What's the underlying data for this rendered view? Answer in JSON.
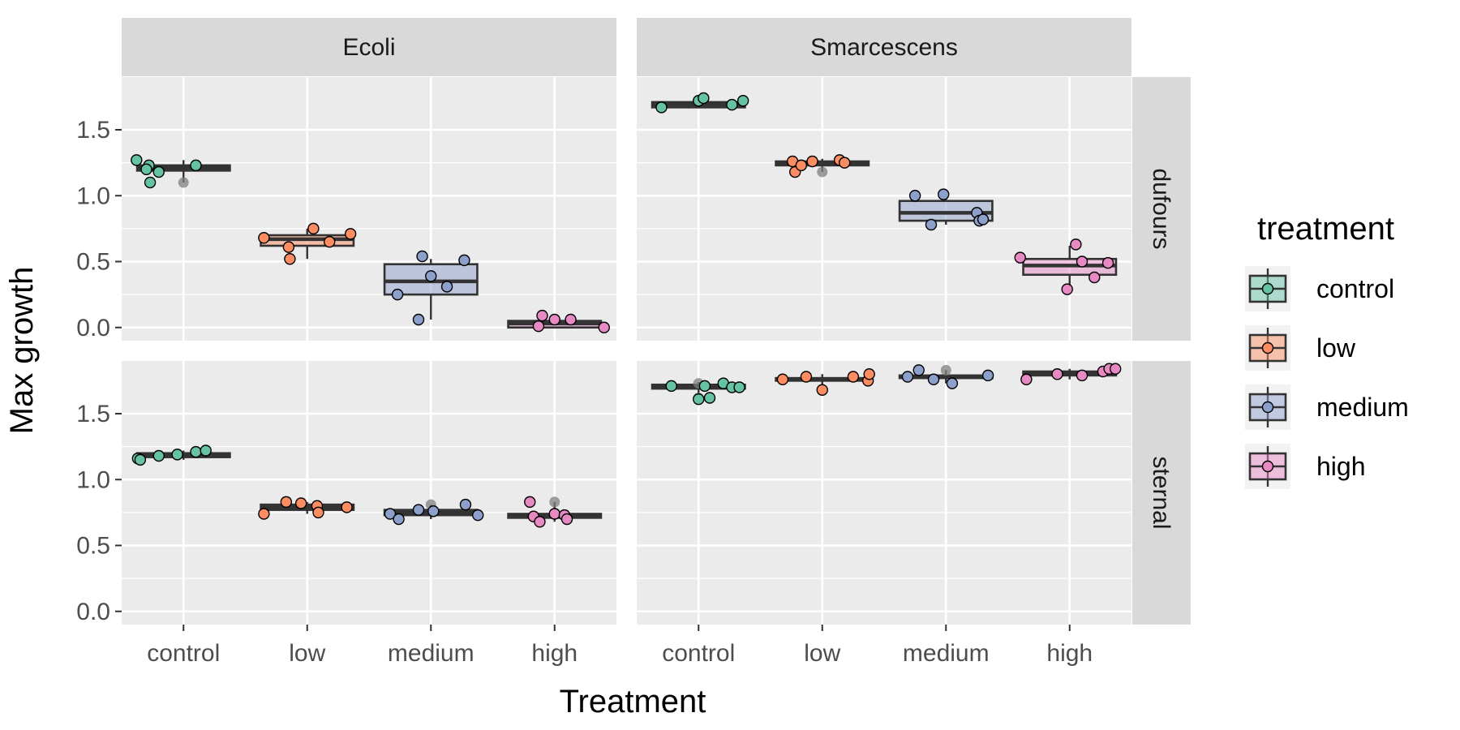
{
  "chart_data": {
    "type": "boxplot",
    "xlabel": "Treatment",
    "ylabel": "Max growth",
    "categories": [
      "control",
      "low",
      "medium",
      "high"
    ],
    "facet_cols": [
      "Ecoli",
      "Smarcescens"
    ],
    "facet_rows": [
      "dufours",
      "sternal"
    ],
    "ylim": [
      -0.1,
      1.9
    ],
    "yticks": [
      "0.0",
      "0.5",
      "1.0",
      "1.5"
    ],
    "grid": true,
    "legend": {
      "title": "treatment",
      "placement": "right",
      "entries": [
        "control",
        "low",
        "medium",
        "high"
      ]
    },
    "colors": {
      "control": "#66c2a5",
      "low": "#fc8d62",
      "medium": "#8da0cb",
      "high": "#e78ac3",
      "panel": "#ebebeb",
      "strip": "#d9d9d9",
      "outlier": "#7f7f7f"
    },
    "panels": [
      {
        "col": "Ecoli",
        "row": "dufours",
        "boxes": [
          {
            "treatment": "control",
            "ymin": 1.1,
            "q1": 1.19,
            "median": 1.21,
            "q3": 1.23,
            "ymax": 1.27,
            "outliers": [
              1.1
            ],
            "points": [
              [
                -0.38,
                1.27
              ],
              [
                -0.28,
                1.23
              ],
              [
                -0.3,
                1.2
              ],
              [
                -0.2,
                1.18
              ],
              [
                -0.27,
                1.1
              ],
              [
                0.1,
                1.23
              ]
            ]
          },
          {
            "treatment": "low",
            "ymin": 0.52,
            "q1": 0.62,
            "median": 0.67,
            "q3": 0.7,
            "ymax": 0.75,
            "outliers": [],
            "points": [
              [
                -0.35,
                0.68
              ],
              [
                -0.15,
                0.61
              ],
              [
                -0.14,
                0.52
              ],
              [
                0.05,
                0.75
              ],
              [
                0.18,
                0.65
              ],
              [
                0.35,
                0.71
              ]
            ]
          },
          {
            "treatment": "medium",
            "ymin": 0.06,
            "q1": 0.25,
            "median": 0.35,
            "q3": 0.48,
            "ymax": 0.52,
            "outliers": [],
            "points": [
              [
                -0.27,
                0.25
              ],
              [
                -0.1,
                0.06
              ],
              [
                -0.07,
                0.54
              ],
              [
                0.0,
                0.39
              ],
              [
                0.13,
                0.31
              ],
              [
                0.27,
                0.51
              ]
            ]
          },
          {
            "treatment": "high",
            "ymin": 0.0,
            "q1": 0.0,
            "median": 0.03,
            "q3": 0.05,
            "ymax": 0.09,
            "outliers": [],
            "points": [
              [
                -0.13,
                0.01
              ],
              [
                -0.1,
                0.09
              ],
              [
                0.0,
                0.06
              ],
              [
                0.13,
                0.06
              ],
              [
                0.4,
                0.0
              ]
            ]
          }
        ]
      },
      {
        "col": "Smarcescens",
        "row": "dufours",
        "boxes": [
          {
            "treatment": "control",
            "ymin": 1.67,
            "q1": 1.67,
            "median": 1.69,
            "q3": 1.71,
            "ymax": 1.74,
            "outliers": [],
            "points": [
              [
                -0.3,
                1.67
              ],
              [
                0.0,
                1.72
              ],
              [
                0.04,
                1.74
              ],
              [
                0.27,
                1.69
              ],
              [
                0.36,
                1.72
              ]
            ]
          },
          {
            "treatment": "low",
            "ymin": 1.18,
            "q1": 1.23,
            "median": 1.24,
            "q3": 1.26,
            "ymax": 1.28,
            "outliers": [
              1.18
            ],
            "points": [
              [
                -0.24,
                1.26
              ],
              [
                -0.22,
                1.18
              ],
              [
                -0.17,
                1.23
              ],
              [
                -0.08,
                1.26
              ],
              [
                0.14,
                1.27
              ],
              [
                0.18,
                1.25
              ]
            ]
          },
          {
            "treatment": "medium",
            "ymin": 0.78,
            "q1": 0.81,
            "median": 0.87,
            "q3": 0.96,
            "ymax": 1.02,
            "outliers": [],
            "points": [
              [
                -0.25,
                1.0
              ],
              [
                -0.12,
                0.78
              ],
              [
                -0.02,
                1.01
              ],
              [
                0.25,
                0.87
              ],
              [
                0.27,
                0.81
              ],
              [
                0.3,
                0.82
              ]
            ]
          },
          {
            "treatment": "high",
            "ymin": 0.29,
            "q1": 0.4,
            "median": 0.47,
            "q3": 0.52,
            "ymax": 0.62,
            "outliers": [],
            "points": [
              [
                -0.4,
                0.53
              ],
              [
                -0.02,
                0.29
              ],
              [
                0.05,
                0.63
              ],
              [
                0.1,
                0.5
              ],
              [
                0.2,
                0.38
              ],
              [
                0.31,
                0.49
              ]
            ]
          }
        ]
      },
      {
        "col": "Ecoli",
        "row": "sternal",
        "boxes": [
          {
            "treatment": "control",
            "ymin": 1.15,
            "q1": 1.17,
            "median": 1.19,
            "q3": 1.2,
            "ymax": 1.22,
            "outliers": [],
            "points": [
              [
                -0.37,
                1.16
              ],
              [
                -0.35,
                1.15
              ],
              [
                -0.2,
                1.18
              ],
              [
                -0.05,
                1.19
              ],
              [
                0.1,
                1.21
              ],
              [
                0.18,
                1.22
              ]
            ]
          },
          {
            "treatment": "low",
            "ymin": 0.74,
            "q1": 0.77,
            "median": 0.79,
            "q3": 0.81,
            "ymax": 0.83,
            "outliers": [],
            "points": [
              [
                -0.35,
                0.74
              ],
              [
                -0.17,
                0.83
              ],
              [
                -0.05,
                0.82
              ],
              [
                0.08,
                0.8
              ],
              [
                0.09,
                0.75
              ],
              [
                0.32,
                0.79
              ]
            ]
          },
          {
            "treatment": "medium",
            "ymin": 0.7,
            "q1": 0.73,
            "median": 0.75,
            "q3": 0.77,
            "ymax": 0.81,
            "outliers": [
              0.81
            ],
            "points": [
              [
                -0.33,
                0.74
              ],
              [
                -0.26,
                0.7
              ],
              [
                -0.1,
                0.77
              ],
              [
                0.02,
                0.76
              ],
              [
                0.28,
                0.81
              ],
              [
                0.38,
                0.73
              ]
            ]
          },
          {
            "treatment": "high",
            "ymin": 0.68,
            "q1": 0.71,
            "median": 0.73,
            "q3": 0.74,
            "ymax": 0.83,
            "outliers": [
              0.83
            ],
            "points": [
              [
                -0.2,
                0.83
              ],
              [
                -0.17,
                0.72
              ],
              [
                -0.12,
                0.68
              ],
              [
                0.0,
                0.74
              ],
              [
                0.08,
                0.73
              ],
              [
                0.1,
                0.7
              ]
            ]
          }
        ]
      },
      {
        "col": "Smarcescens",
        "row": "sternal",
        "boxes": [
          {
            "treatment": "control",
            "ymin": 1.62,
            "q1": 1.69,
            "median": 1.71,
            "q3": 1.72,
            "ymax": 1.74,
            "outliers": [
              1.62,
              1.73
            ],
            "points": [
              [
                -0.22,
                1.71
              ],
              [
                0.0,
                1.61
              ],
              [
                0.05,
                1.71
              ],
              [
                0.09,
                1.62
              ],
              [
                0.2,
                1.73
              ],
              [
                0.27,
                1.7
              ],
              [
                0.33,
                1.7
              ]
            ]
          },
          {
            "treatment": "low",
            "ymin": 1.68,
            "q1": 1.75,
            "median": 1.76,
            "q3": 1.77,
            "ymax": 1.8,
            "outliers": [],
            "points": [
              [
                -0.32,
                1.76
              ],
              [
                -0.13,
                1.78
              ],
              [
                0.0,
                1.68
              ],
              [
                0.25,
                1.78
              ],
              [
                0.37,
                1.75
              ],
              [
                0.38,
                1.8
              ]
            ]
          },
          {
            "treatment": "medium",
            "ymin": 1.73,
            "q1": 1.77,
            "median": 1.78,
            "q3": 1.79,
            "ymax": 1.83,
            "outliers": [
              1.83
            ],
            "points": [
              [
                -0.31,
                1.78
              ],
              [
                -0.22,
                1.83
              ],
              [
                -0.1,
                1.76
              ],
              [
                0.05,
                1.73
              ],
              [
                0.34,
                1.79
              ]
            ]
          },
          {
            "treatment": "high",
            "ymin": 1.76,
            "q1": 1.79,
            "median": 1.8,
            "q3": 1.82,
            "ymax": 1.84,
            "outliers": [],
            "points": [
              [
                -0.35,
                1.76
              ],
              [
                -0.1,
                1.8
              ],
              [
                0.1,
                1.79
              ],
              [
                0.27,
                1.82
              ],
              [
                0.32,
                1.84
              ],
              [
                0.37,
                1.84
              ]
            ]
          }
        ]
      }
    ]
  }
}
